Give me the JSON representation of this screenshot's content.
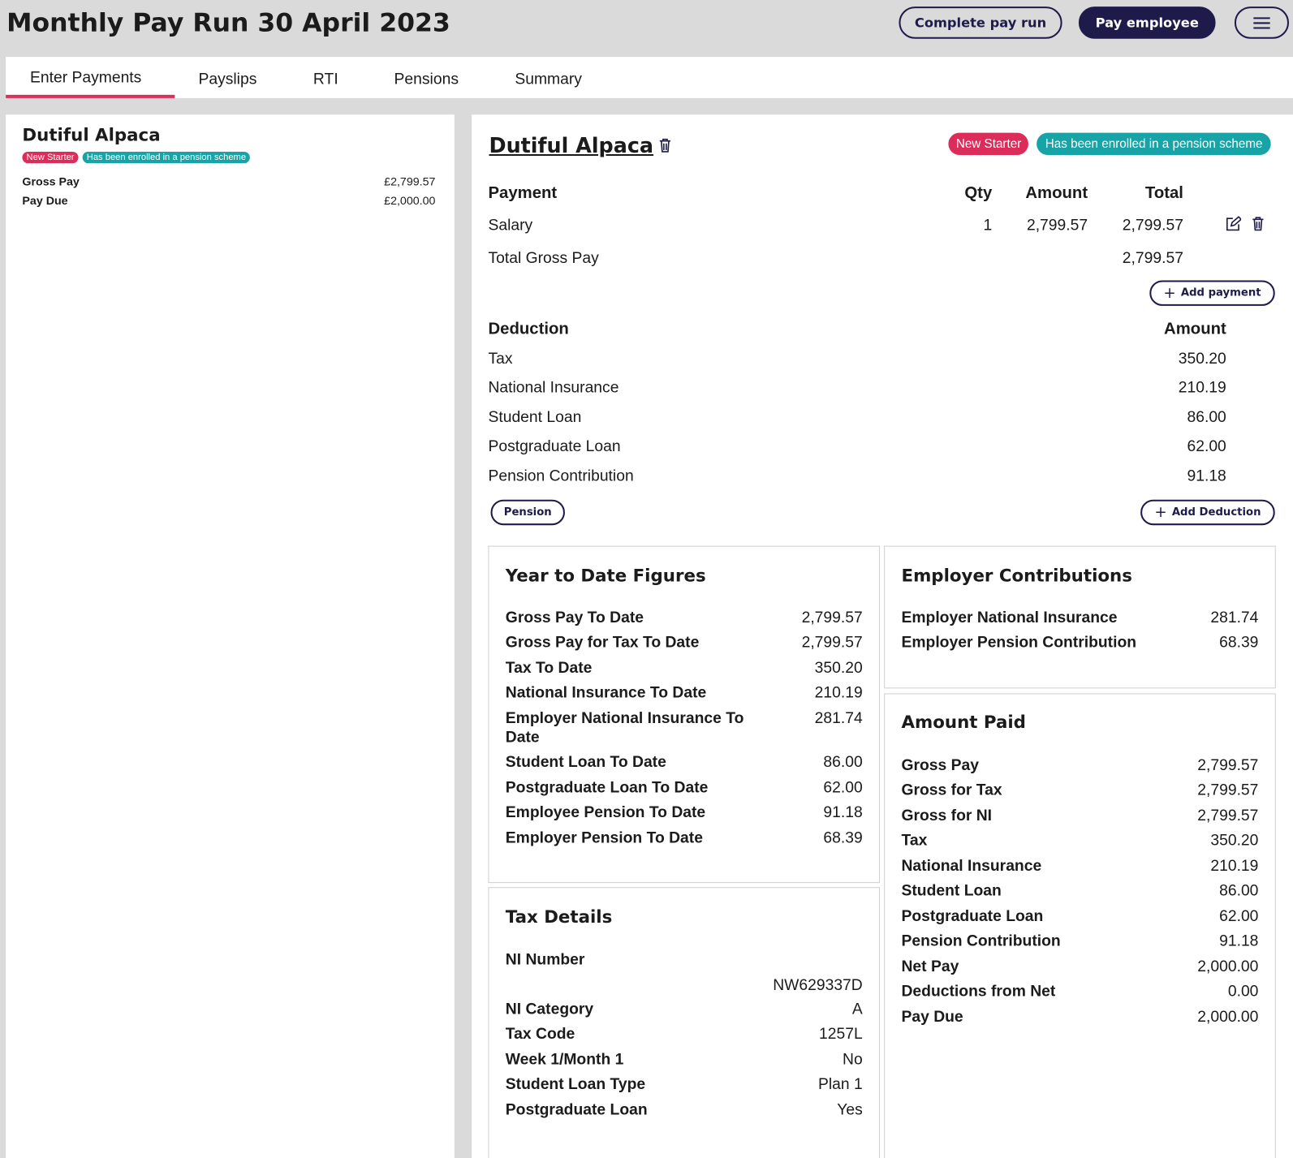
{
  "header": {
    "title": "Monthly Pay Run 30 April 2023",
    "complete_button": "Complete pay run",
    "pay_button": "Pay employee"
  },
  "tabs": [
    "Enter Payments",
    "Payslips",
    "RTI",
    "Pensions",
    "Summary"
  ],
  "sidebar": {
    "name": "Dutiful Alpaca",
    "badges": [
      "New Starter",
      "Has been enrolled in a pension scheme"
    ],
    "rows": [
      [
        "Gross Pay",
        "£2,799.57"
      ],
      [
        "Pay Due",
        "£2,000.00"
      ]
    ]
  },
  "employee": {
    "name": "Dutiful Alpaca",
    "badges": [
      "New Starter",
      "Has been enrolled in a pension scheme"
    ]
  },
  "payments": {
    "headers": [
      "Payment",
      "Qty",
      "Amount",
      "Total"
    ],
    "rows": [
      [
        "Salary",
        "1",
        "2,799.57",
        "2,799.57"
      ]
    ],
    "total": [
      "Total Gross Pay",
      "2,799.57"
    ],
    "add_button": "Add payment"
  },
  "deductions": {
    "headers": [
      "Deduction",
      "Amount"
    ],
    "rows": [
      [
        "Tax",
        "350.20"
      ],
      [
        "National Insurance",
        "210.19"
      ],
      [
        "Student Loan",
        "86.00"
      ],
      [
        "Postgraduate Loan",
        "62.00"
      ],
      [
        "Pension Contribution",
        "91.18"
      ]
    ],
    "pension_button": "Pension",
    "add_button": "Add Deduction"
  },
  "ytd": {
    "title": "Year to Date Figures",
    "rows": [
      [
        "Gross Pay To Date",
        "2,799.57"
      ],
      [
        "Gross Pay for Tax To Date",
        "2,799.57"
      ],
      [
        "Tax To Date",
        "350.20"
      ],
      [
        "National Insurance To Date",
        "210.19"
      ],
      [
        "Employer National Insurance To Date",
        "281.74"
      ],
      [
        "Student Loan To Date",
        "86.00"
      ],
      [
        "Postgraduate Loan To Date",
        "62.00"
      ],
      [
        "Employee Pension To Date",
        "91.18"
      ],
      [
        "Employer Pension To Date",
        "68.39"
      ]
    ]
  },
  "tax_details": {
    "title": "Tax Details",
    "rows": [
      [
        "NI Number",
        "NW629337D"
      ],
      [
        "NI Category",
        "A"
      ],
      [
        "Tax Code",
        "1257L"
      ],
      [
        "Week 1/Month 1",
        "No"
      ],
      [
        "Student Loan Type",
        "Plan 1"
      ],
      [
        "Postgraduate Loan",
        "Yes"
      ]
    ]
  },
  "employer": {
    "title": "Employer Contributions",
    "rows": [
      [
        "Employer National Insurance",
        "281.74"
      ],
      [
        "Employer Pension Contribution",
        "68.39"
      ]
    ]
  },
  "amount_paid": {
    "title": "Amount Paid",
    "rows": [
      [
        "Gross Pay",
        "2,799.57"
      ],
      [
        "Gross for Tax",
        "2,799.57"
      ],
      [
        "Gross for NI",
        "2,799.57"
      ],
      [
        "Tax",
        "350.20"
      ],
      [
        "National Insurance",
        "210.19"
      ],
      [
        "Student Loan",
        "86.00"
      ],
      [
        "Postgraduate Loan",
        "62.00"
      ],
      [
        "Pension Contribution",
        "91.18"
      ],
      [
        "Net Pay",
        "2,000.00"
      ],
      [
        "Deductions from Net",
        "0.00"
      ],
      [
        "Pay Due",
        "2,000.00"
      ]
    ]
  }
}
